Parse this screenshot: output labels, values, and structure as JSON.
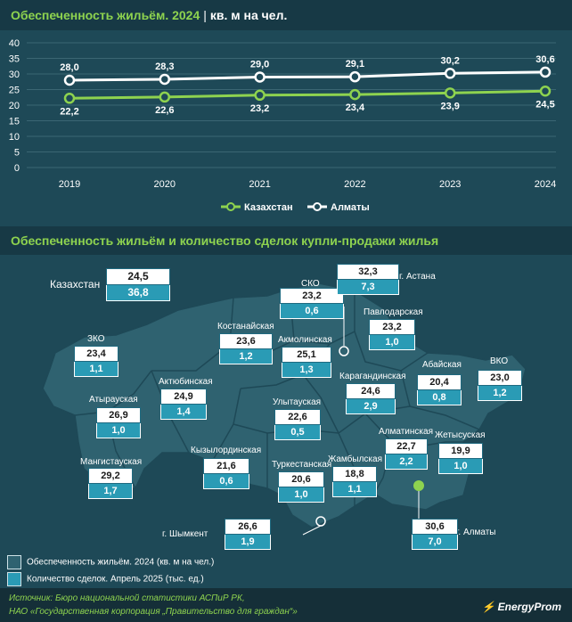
{
  "header1": {
    "title": "Обеспеченность жильём. 2024",
    "unit": "кв. м на чел."
  },
  "header2": {
    "title": "Обеспеченность жильём и количество сделок купли-продажи жилья"
  },
  "chart_data": {
    "type": "line",
    "title": "Обеспеченность жильём. 2024",
    "ylabel": "кв. м на чел.",
    "x": [
      "2019",
      "2020",
      "2021",
      "2022",
      "2023",
      "2024"
    ],
    "ylim": [
      0,
      40
    ],
    "yticks": [
      0,
      5,
      10,
      15,
      20,
      25,
      30,
      35,
      40
    ],
    "grid": true,
    "legend_position": "bottom",
    "series": [
      {
        "name": "Казахстан",
        "values": [
          22.2,
          22.6,
          23.2,
          23.4,
          23.9,
          24.5
        ],
        "labels": [
          "22,2",
          "22,6",
          "23,2",
          "23,4",
          "23,9",
          "24,5"
        ],
        "color": "#8ed34f"
      },
      {
        "name": "Алматы",
        "values": [
          28.0,
          28.3,
          29.0,
          29.1,
          30.2,
          30.6
        ],
        "labels": [
          "28,0",
          "28,3",
          "29,0",
          "29,1",
          "30,2",
          "30,6"
        ],
        "color": "#ffffff"
      }
    ]
  },
  "map": {
    "country": {
      "name": "Казахстан",
      "housing": "24,5",
      "deals": "36,8"
    },
    "regions": [
      {
        "name": "СКО",
        "housing": "23,2",
        "deals": "0,6"
      },
      {
        "name": "г. Астана",
        "housing": "32,3",
        "deals": "7,3"
      },
      {
        "name": "Павлодарская",
        "housing": "23,2",
        "deals": "1,0"
      },
      {
        "name": "Костанайская",
        "housing": "23,6",
        "deals": "1,2"
      },
      {
        "name": "Акмолинская",
        "housing": "25,1",
        "deals": "1,3"
      },
      {
        "name": "ЗКО",
        "housing": "23,4",
        "deals": "1,1"
      },
      {
        "name": "Абайская",
        "housing": "20,4",
        "deals": "0,8"
      },
      {
        "name": "ВКО",
        "housing": "23,0",
        "deals": "1,2"
      },
      {
        "name": "Актюбинская",
        "housing": "24,9",
        "deals": "1,4"
      },
      {
        "name": "Карагандинская",
        "housing": "24,6",
        "deals": "2,9"
      },
      {
        "name": "Атырауская",
        "housing": "26,9",
        "deals": "1,0"
      },
      {
        "name": "Улытауская",
        "housing": "22,6",
        "deals": "0,5"
      },
      {
        "name": "Алматинская",
        "housing": "22,7",
        "deals": "2,2"
      },
      {
        "name": "Жетысуская",
        "housing": "19,9",
        "deals": "1,0"
      },
      {
        "name": "Мангистауская",
        "housing": "29,2",
        "deals": "1,7"
      },
      {
        "name": "Кызылординская",
        "housing": "21,6",
        "deals": "0,6"
      },
      {
        "name": "Туркестанская",
        "housing": "20,6",
        "deals": "1,0"
      },
      {
        "name": "Жамбылская",
        "housing": "18,8",
        "deals": "1,1"
      },
      {
        "name": "г. Шымкент",
        "housing": "26,6",
        "deals": "1,9"
      },
      {
        "name": "г. Алматы",
        "housing": "30,6",
        "deals": "7,0"
      }
    ]
  },
  "legend_bottom": {
    "housing": "Обеспеченность жильём. 2024 (кв. м на чел.)",
    "deals": "Количество сделок. Апрель 2025 (тыс. ед.)"
  },
  "footer": {
    "source1": "Источник: Бюро национальной статистики АСПиР РК,",
    "source2": "НАО «Государственная корпорация „Правительство для граждан“»",
    "brand": "EnergyProm"
  },
  "colors": {
    "bg": "#1e4957",
    "accent": "#8ed34f",
    "deals_box": "#2a9bb5"
  }
}
